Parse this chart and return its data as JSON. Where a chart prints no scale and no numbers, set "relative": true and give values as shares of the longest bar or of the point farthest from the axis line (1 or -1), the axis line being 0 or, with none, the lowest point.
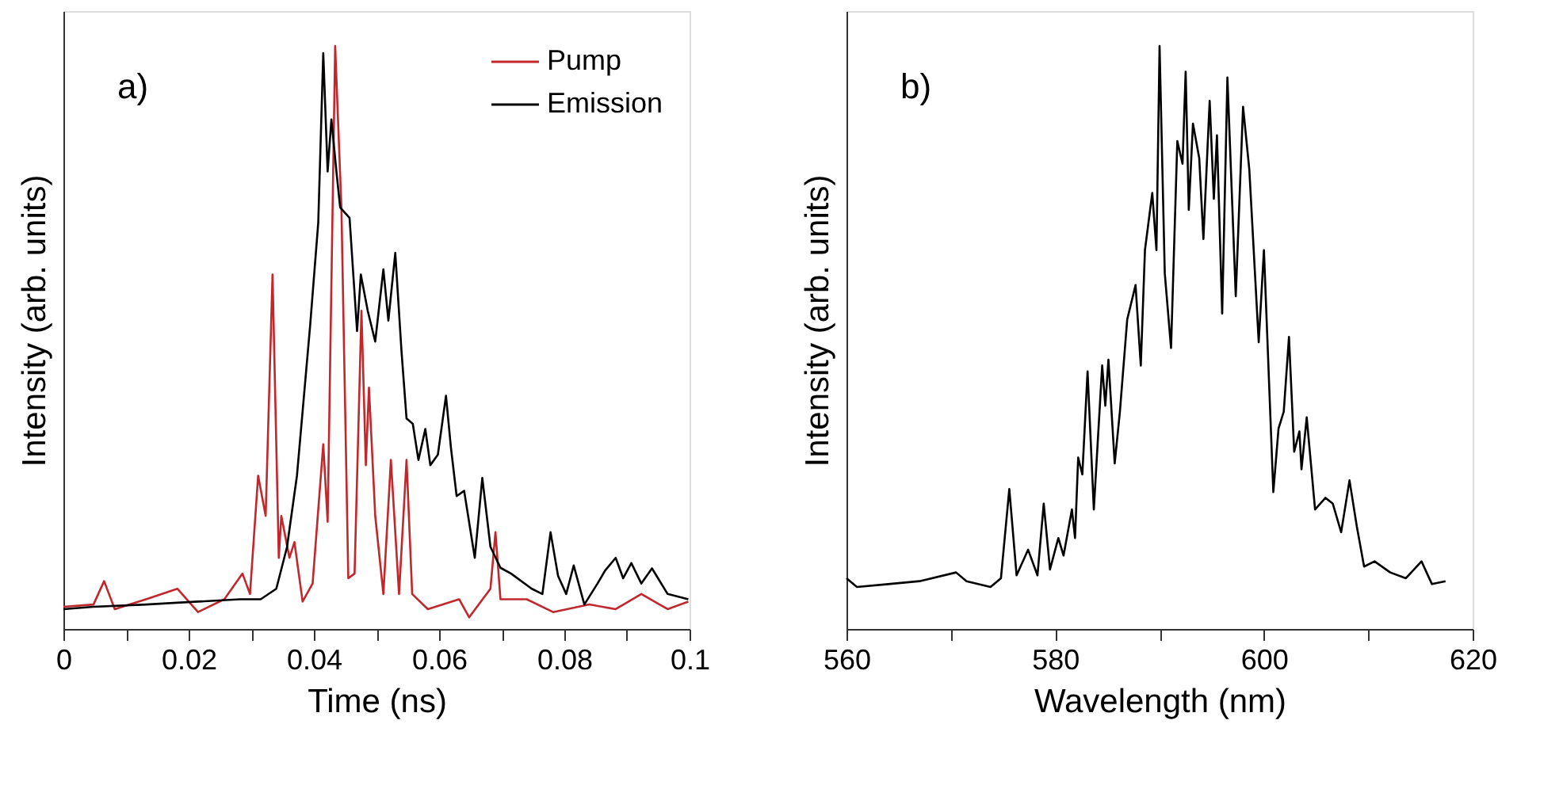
{
  "chart_data": [
    {
      "type": "line",
      "relative": true,
      "xlabel": "Time (ns)",
      "ylabel": "Intensity (arb. units)",
      "annotations": [
        "a)"
      ],
      "legend": "top right",
      "xlim": [
        0,
        0.1
      ],
      "xticks": [
        0,
        {
          "value": 0.01,
          "label": null
        },
        0.02,
        {
          "value": 0.03,
          "label": null
        },
        0.04,
        {
          "value": 0.05,
          "label": null
        },
        0.06,
        {
          "value": 0.07,
          "label": null
        },
        0.08,
        {
          "value": 0.09,
          "label": null
        },
        0.1
      ],
      "series": [
        {
          "name": "Pump",
          "color": "#c0282d",
          "x": [
            0,
            0.0048,
            0.0065,
            0.0082,
            0.0132,
            0.0182,
            0.0215,
            0.0257,
            0.0286,
            0.0298,
            0.0311,
            0.0323,
            0.0334,
            0.0344,
            0.0348,
            0.0361,
            0.0369,
            0.0382,
            0.0398,
            0.0415,
            0.0422,
            0.0434,
            0.0444,
            0.0455,
            0.0465,
            0.0476,
            0.0483,
            0.0488,
            0.0498,
            0.0511,
            0.0523,
            0.0536,
            0.0548,
            0.0557,
            0.0582,
            0.0632,
            0.0648,
            0.0682,
            0.069,
            0.0698,
            0.074,
            0.0782,
            0.084,
            0.0882,
            0.0923,
            0.0965,
            0.0998
          ],
          "values": [
            0.038,
            0.042,
            0.082,
            0.034,
            0.051,
            0.069,
            0.029,
            0.051,
            0.095,
            0.06,
            0.263,
            0.194,
            0.608,
            0.122,
            0.194,
            0.122,
            0.149,
            0.047,
            0.078,
            0.317,
            0.184,
            1,
            0.723,
            0.087,
            0.095,
            0.546,
            0.281,
            0.414,
            0.194,
            0.06,
            0.29,
            0.06,
            0.29,
            0.06,
            0.034,
            0.051,
            0.02,
            0.069,
            0.166,
            0.051,
            0.051,
            0.029,
            0.042,
            0.034,
            0.06,
            0.034,
            0.047
          ]
        },
        {
          "name": "Emission",
          "color": "#000000",
          "x": [
            0,
            0.0048,
            0.0132,
            0.0215,
            0.0282,
            0.0315,
            0.034,
            0.0357,
            0.0373,
            0.0394,
            0.0407,
            0.0415,
            0.0422,
            0.0428,
            0.0436,
            0.0442,
            0.0457,
            0.0469,
            0.0475,
            0.0486,
            0.0498,
            0.0511,
            0.0519,
            0.053,
            0.054,
            0.0548,
            0.0558,
            0.0567,
            0.0578,
            0.0586,
            0.0598,
            0.0611,
            0.0619,
            0.0628,
            0.064,
            0.0657,
            0.0669,
            0.0682,
            0.0698,
            0.0715,
            0.0748,
            0.0765,
            0.0778,
            0.079,
            0.0803,
            0.0815,
            0.0832,
            0.0853,
            0.0865,
            0.0882,
            0.0894,
            0.0907,
            0.0923,
            0.094,
            0.0965,
            0.0998
          ],
          "values": [
            0.034,
            0.038,
            0.042,
            0.047,
            0.051,
            0.051,
            0.069,
            0.14,
            0.263,
            0.52,
            0.697,
            0.988,
            0.785,
            0.874,
            0.785,
            0.723,
            0.705,
            0.511,
            0.608,
            0.546,
            0.493,
            0.617,
            0.529,
            0.645,
            0.476,
            0.361,
            0.352,
            0.29,
            0.343,
            0.281,
            0.299,
            0.4,
            0.31,
            0.228,
            0.237,
            0.122,
            0.259,
            0.141,
            0.105,
            0.095,
            0.069,
            0.06,
            0.166,
            0.091,
            0.06,
            0.109,
            0.042,
            0.078,
            0.1,
            0.122,
            0.087,
            0.113,
            0.078,
            0.104,
            0.06,
            0.051
          ]
        }
      ]
    },
    {
      "type": "line",
      "relative": true,
      "xlabel": "Wavelength (nm)",
      "ylabel": "Intensity (arb. units)",
      "annotations": [
        "b)"
      ],
      "xlim": [
        560,
        620
      ],
      "xticks": [
        560,
        {
          "value": 570,
          "label": null
        },
        580,
        {
          "value": 590,
          "label": null
        },
        600,
        {
          "value": 610,
          "label": null
        },
        620
      ],
      "series": [
        {
          "color": "#000000",
          "x": [
            560.0,
            561.0,
            564.0,
            567.0,
            570.5,
            571.5,
            573.8,
            574.8,
            575.6,
            576.3,
            577.4,
            578.3,
            578.9,
            579.5,
            580.3,
            580.8,
            581.6,
            581.9,
            582.2,
            582.6,
            583.1,
            583.7,
            584.5,
            584.8,
            585.1,
            585.7,
            586.2,
            586.9,
            587.7,
            588.2,
            588.6,
            589.3,
            589.7,
            590.0,
            590.5,
            591.1,
            591.7,
            592.2,
            592.5,
            592.8,
            593.2,
            593.8,
            594.2,
            594.8,
            595.2,
            595.5,
            596.0,
            596.5,
            597.3,
            598.0,
            598.6,
            599.5,
            600.0,
            600.9,
            601.4,
            601.9,
            602.4,
            602.9,
            603.4,
            603.6,
            604.1,
            604.9,
            605.9,
            606.6,
            607.4,
            608.2,
            608.9,
            609.6,
            610.6,
            612.1,
            613.6,
            615.1,
            616.1,
            617.4
          ],
          "values": [
            0.087,
            0.072,
            0.077,
            0.082,
            0.097,
            0.082,
            0.072,
            0.087,
            0.24,
            0.092,
            0.136,
            0.092,
            0.215,
            0.102,
            0.156,
            0.126,
            0.205,
            0.156,
            0.294,
            0.265,
            0.442,
            0.205,
            0.452,
            0.383,
            0.462,
            0.284,
            0.373,
            0.531,
            0.59,
            0.452,
            0.65,
            0.748,
            0.65,
            1,
            0.61,
            0.482,
            0.837,
            0.798,
            0.956,
            0.719,
            0.867,
            0.808,
            0.669,
            0.906,
            0.738,
            0.847,
            0.541,
            0.946,
            0.571,
            0.896,
            0.788,
            0.492,
            0.65,
            0.235,
            0.344,
            0.373,
            0.501,
            0.304,
            0.339,
            0.274,
            0.363,
            0.205,
            0.225,
            0.215,
            0.166,
            0.255,
            0.176,
            0.107,
            0.116,
            0.097,
            0.087,
            0.116,
            0.077,
            0.082
          ]
        }
      ]
    }
  ]
}
